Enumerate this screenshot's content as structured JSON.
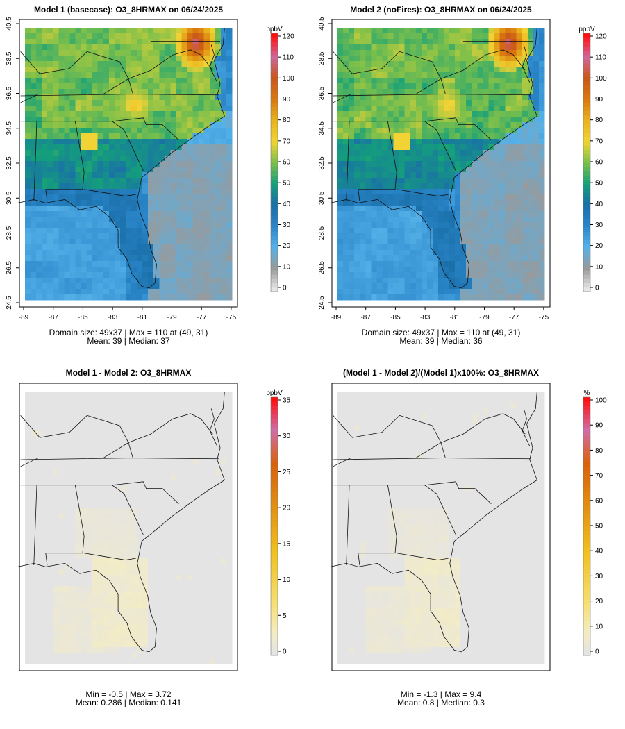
{
  "chart_data": [
    {
      "type": "heatmap",
      "title": "Model 1 (basecase): O3_8HRMAX on 06/24/2025",
      "x_ticks": [
        "-89",
        "-87",
        "-85",
        "-83",
        "-81",
        "-79",
        "-77",
        "-75"
      ],
      "y_ticks": [
        "24.5",
        "26.5",
        "28.5",
        "30.5",
        "32.5",
        "34.5",
        "36.5",
        "38.5",
        "40.5"
      ],
      "xlim": [
        -89,
        -75
      ],
      "ylim": [
        24.5,
        40.5
      ],
      "colorbar": {
        "unit": "ppbV",
        "ticks": [
          "0",
          "10",
          "20",
          "30",
          "40",
          "50",
          "60",
          "70",
          "80",
          "90",
          "100",
          "110",
          "120"
        ],
        "range": [
          0,
          120
        ],
        "scale": "ozone"
      },
      "stats": [
        "Domain size: 49x37 | Max = 110 at (49, 31)",
        "Mean: 39 |  Median: 37"
      ],
      "field": {
        "mean": 39,
        "max": 110,
        "kind": "base",
        "seed": 11
      }
    },
    {
      "type": "heatmap",
      "title": "Model 2 (noFires): O3_8HRMAX on 06/24/2025",
      "x_ticks": [
        "-89",
        "-87",
        "-85",
        "-83",
        "-81",
        "-79",
        "-77",
        "-75"
      ],
      "y_ticks": [
        "24.5",
        "26.5",
        "28.5",
        "30.5",
        "32.5",
        "34.5",
        "36.5",
        "38.5",
        "40.5"
      ],
      "xlim": [
        -89,
        -75
      ],
      "ylim": [
        24.5,
        40.5
      ],
      "colorbar": {
        "unit": "ppbV",
        "ticks": [
          "0",
          "10",
          "20",
          "30",
          "40",
          "50",
          "60",
          "70",
          "80",
          "90",
          "100",
          "110",
          "120"
        ],
        "range": [
          0,
          120
        ],
        "scale": "ozone"
      },
      "stats": [
        "Domain size: 49x37 | Max = 110 at (49, 31)",
        "Mean: 39 |  Median: 36"
      ],
      "field": {
        "mean": 39,
        "max": 110,
        "kind": "base",
        "seed": 23
      }
    },
    {
      "type": "heatmap",
      "title": "Model 1 - Model 2: O3_8HRMAX",
      "colorbar": {
        "unit": "ppbV",
        "ticks": [
          "0",
          "5",
          "10",
          "15",
          "20",
          "25",
          "30",
          "35"
        ],
        "range": [
          0,
          35
        ],
        "scale": "diff"
      },
      "stats": [
        "Min = -0.5 | Max = 3.72",
        "Mean: 0.286 |  Median: 0.141"
      ],
      "field": {
        "min": -0.5,
        "max": 3.72,
        "kind": "diff",
        "seed": 5
      }
    },
    {
      "type": "heatmap",
      "title": "(Model 1 - Model 2)/(Model 1)x100%: O3_8HRMAX",
      "colorbar": {
        "unit": "%",
        "ticks": [
          "0",
          "10",
          "20",
          "30",
          "40",
          "50",
          "60",
          "70",
          "80",
          "90",
          "100"
        ],
        "range": [
          0,
          100
        ],
        "scale": "diff"
      },
      "stats": [
        "Min = -1.3 | Max = 9.4",
        "Mean: 0.8 |  Median: 0.3"
      ],
      "field": {
        "min": -1.3,
        "max": 9.4,
        "kind": "pct",
        "seed": 7
      }
    }
  ]
}
